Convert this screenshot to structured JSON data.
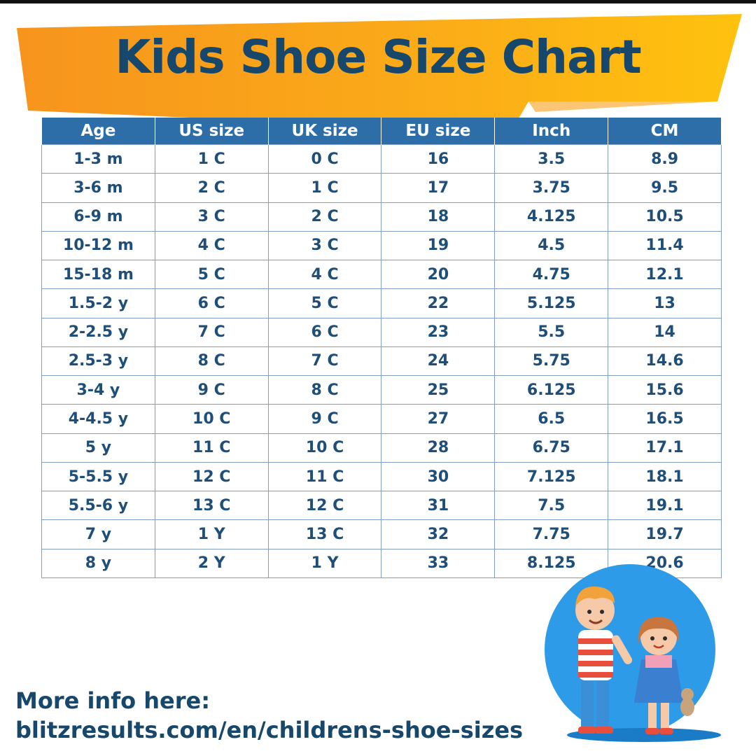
{
  "title": "Kids Shoe Size Chart",
  "table": {
    "headers": [
      "Age",
      "US size",
      "UK size",
      "EU size",
      "Inch",
      "CM"
    ],
    "rows": [
      [
        "1-3 m",
        "1 C",
        "0 C",
        "16",
        "3.5",
        "8.9"
      ],
      [
        "3-6 m",
        "2 C",
        "1 C",
        "17",
        "3.75",
        "9.5"
      ],
      [
        "6-9 m",
        "3 C",
        "2 C",
        "18",
        "4.125",
        "10.5"
      ],
      [
        "10-12 m",
        "4 C",
        "3 C",
        "19",
        "4.5",
        "11.4"
      ],
      [
        "15-18 m",
        "5 C",
        "4 C",
        "20",
        "4.75",
        "12.1"
      ],
      [
        "1.5-2 y",
        "6 C",
        "5 C",
        "22",
        "5.125",
        "13"
      ],
      [
        "2-2.5 y",
        "7 C",
        "6 C",
        "23",
        "5.5",
        "14"
      ],
      [
        "2.5-3 y",
        "8 C",
        "7 C",
        "24",
        "5.75",
        "14.6"
      ],
      [
        "3-4 y",
        "9 C",
        "8 C",
        "25",
        "6.125",
        "15.6"
      ],
      [
        "4-4.5 y",
        "10 C",
        "9 C",
        "27",
        "6.5",
        "16.5"
      ],
      [
        "5 y",
        "11 C",
        "10 C",
        "28",
        "6.75",
        "17.1"
      ],
      [
        "5-5.5 y",
        "12 C",
        "11 C",
        "30",
        "7.125",
        "18.1"
      ],
      [
        "5.5-6 y",
        "13 C",
        "12 C",
        "31",
        "7.5",
        "19.1"
      ],
      [
        "7 y",
        "1 Y",
        "13 C",
        "32",
        "7.75",
        "19.7"
      ],
      [
        "8 y",
        "2 Y",
        "1 Y",
        "33",
        "8.125",
        "20.6"
      ]
    ]
  },
  "footer": {
    "line1": "More info here:",
    "line2": "blitzresults.com/en/childrens-shoe-sizes"
  },
  "colors": {
    "banner_orange": "#f7941d",
    "banner_yellow": "#ffc20e",
    "title_navy": "#17476a",
    "header_blue": "#2e6ea8",
    "cell_text": "#1f4e79",
    "grid_line": "#7f9fc4",
    "circle_blue": "#2d9be8"
  },
  "illustration": {
    "icon": "kids-illustration-icon"
  }
}
